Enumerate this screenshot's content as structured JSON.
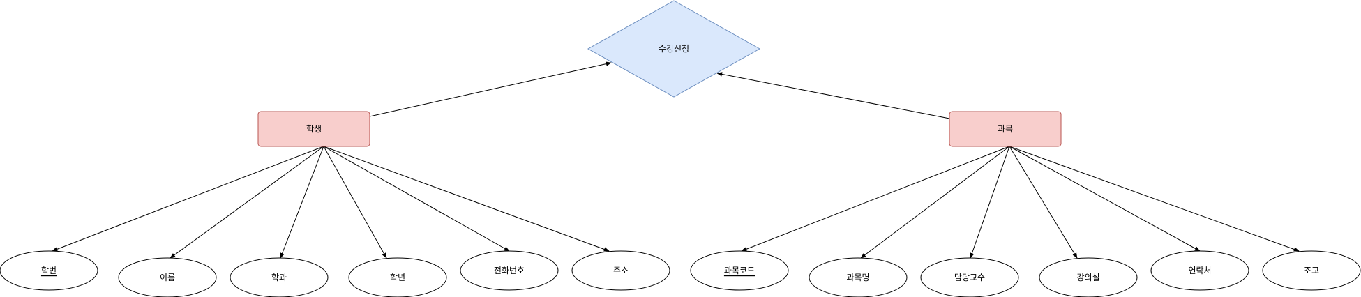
{
  "relationship": {
    "label": "수강신청",
    "fill": "#dae8fc",
    "stroke": "#6c8ebf"
  },
  "entities": [
    {
      "id": "student",
      "label": "학생",
      "fill": "#f8cecc",
      "stroke": "#b85450"
    },
    {
      "id": "course",
      "label": "과목",
      "fill": "#f8cecc",
      "stroke": "#b85450"
    }
  ],
  "attributes": [
    {
      "id": "student-id",
      "label": "학번",
      "entity": "student",
      "key": true
    },
    {
      "id": "name",
      "label": "이름",
      "entity": "student",
      "key": false
    },
    {
      "id": "department",
      "label": "학과",
      "entity": "student",
      "key": false
    },
    {
      "id": "grade",
      "label": "학년",
      "entity": "student",
      "key": false
    },
    {
      "id": "phone",
      "label": "전화번호",
      "entity": "student",
      "key": false
    },
    {
      "id": "address",
      "label": "주소",
      "entity": "student",
      "key": false
    },
    {
      "id": "course-code",
      "label": "과목코드",
      "entity": "course",
      "key": true
    },
    {
      "id": "course-name",
      "label": "과목명",
      "entity": "course",
      "key": false
    },
    {
      "id": "professor",
      "label": "담당교수",
      "entity": "course",
      "key": false
    },
    {
      "id": "classroom",
      "label": "강의실",
      "entity": "course",
      "key": false
    },
    {
      "id": "contact",
      "label": "연락처",
      "entity": "course",
      "key": false
    },
    {
      "id": "ta",
      "label": "조교",
      "entity": "course",
      "key": false
    }
  ]
}
